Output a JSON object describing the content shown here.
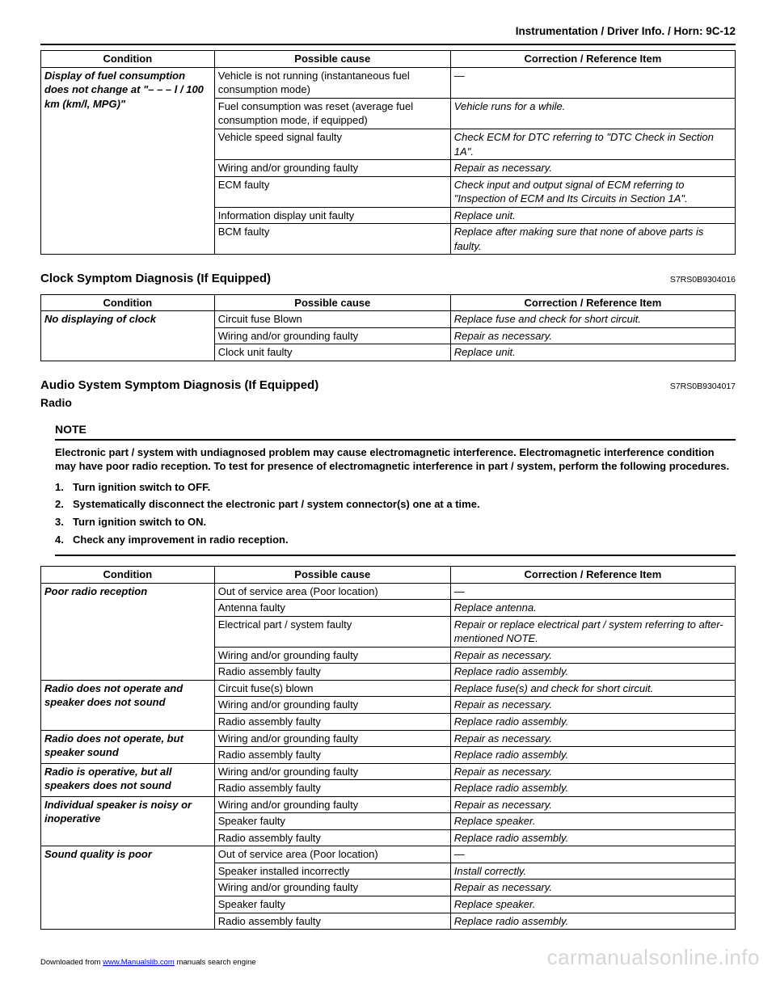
{
  "page": {
    "header": "Instrumentation / Driver Info. / Horn:    9C-12"
  },
  "table1": {
    "headers": {
      "cond": "Condition",
      "cause": "Possible cause",
      "corr": "Correction / Reference Item"
    },
    "cond": "Display of fuel consumption does not change at \"– – – l / 100 km (km/l, MPG)\"",
    "rows": [
      {
        "cause": "Vehicle is not running (instantaneous fuel consumption mode)",
        "corr": "—"
      },
      {
        "cause": "Fuel consumption was reset (average fuel consumption mode, if equipped)",
        "corr": "Vehicle runs for a while."
      },
      {
        "cause": "Vehicle speed signal faulty",
        "corr": "Check ECM for DTC referring to \"DTC Check in Section 1A\"."
      },
      {
        "cause": "Wiring and/or grounding faulty",
        "corr": "Repair as necessary."
      },
      {
        "cause": "ECM faulty",
        "corr": "Check input and output signal of ECM referring to \"Inspection of ECM and Its Circuits in Section 1A\"."
      },
      {
        "cause": "Information display unit faulty",
        "corr": "Replace unit."
      },
      {
        "cause": "BCM faulty",
        "corr": "Replace after making sure that none of above parts is faulty."
      }
    ]
  },
  "section2": {
    "title": "Clock Symptom Diagnosis (If Equipped)",
    "code": "S7RS0B9304016"
  },
  "table2": {
    "headers": {
      "cond": "Condition",
      "cause": "Possible cause",
      "corr": "Correction / Reference Item"
    },
    "cond": "No displaying of clock",
    "rows": [
      {
        "cause": "Circuit fuse Blown",
        "corr": "Replace fuse and check for short circuit."
      },
      {
        "cause": "Wiring and/or grounding faulty",
        "corr": "Repair as necessary."
      },
      {
        "cause": "Clock unit faulty",
        "corr": "Replace unit."
      }
    ]
  },
  "section3": {
    "title": "Audio System Symptom Diagnosis (If Equipped)",
    "code": "S7RS0B9304017",
    "subtitle": "Radio"
  },
  "note": {
    "label": "NOTE",
    "text": "Electronic part / system with undiagnosed problem may cause electromagnetic interference. Electromagnetic interference condition may have poor radio reception. To test for presence of electromagnetic interference in part / system, perform the following procedures.",
    "steps": [
      "Turn ignition switch to OFF.",
      "Systematically disconnect the electronic part / system connector(s) one at a time.",
      "Turn ignition switch to ON.",
      "Check any improvement in radio reception."
    ]
  },
  "table3": {
    "headers": {
      "cond": "Condition",
      "cause": "Possible cause",
      "corr": "Correction / Reference Item"
    },
    "groups": [
      {
        "cond": "Poor radio reception",
        "rows": [
          {
            "cause": "Out of service area (Poor location)",
            "corr": "—"
          },
          {
            "cause": "Antenna faulty",
            "corr": "Replace antenna."
          },
          {
            "cause": "Electrical part / system faulty",
            "corr": "Repair or replace electrical part / system referring to after-mentioned NOTE."
          },
          {
            "cause": "Wiring and/or grounding faulty",
            "corr": "Repair as necessary."
          },
          {
            "cause": "Radio assembly faulty",
            "corr": "Replace radio assembly."
          }
        ]
      },
      {
        "cond": "Radio does not operate and speaker does not sound",
        "rows": [
          {
            "cause": "Circuit fuse(s) blown",
            "corr": "Replace fuse(s) and check for short circuit."
          },
          {
            "cause": "Wiring and/or grounding faulty",
            "corr": "Repair as necessary."
          },
          {
            "cause": "Radio assembly faulty",
            "corr": "Replace radio assembly."
          }
        ]
      },
      {
        "cond": "Radio does not operate, but speaker sound",
        "rows": [
          {
            "cause": "Wiring and/or grounding faulty",
            "corr": "Repair as necessary."
          },
          {
            "cause": "Radio assembly faulty",
            "corr": "Replace radio assembly."
          }
        ]
      },
      {
        "cond": "Radio is operative, but all speakers does not sound",
        "rows": [
          {
            "cause": "Wiring and/or grounding faulty",
            "corr": "Repair as necessary."
          },
          {
            "cause": "Radio assembly faulty",
            "corr": "Replace radio assembly."
          }
        ]
      },
      {
        "cond": "Individual speaker is noisy or inoperative",
        "rows": [
          {
            "cause": "Wiring and/or grounding faulty",
            "corr": "Repair as necessary."
          },
          {
            "cause": "Speaker faulty",
            "corr": "Replace speaker."
          },
          {
            "cause": "Radio assembly faulty",
            "corr": "Replace radio assembly."
          }
        ]
      },
      {
        "cond": "Sound quality is poor",
        "rows": [
          {
            "cause": "Out of service area (Poor location)",
            "corr": "—"
          },
          {
            "cause": "Speaker installed incorrectly",
            "corr": "Install correctly."
          },
          {
            "cause": "Wiring and/or grounding faulty",
            "corr": "Repair as necessary."
          },
          {
            "cause": "Speaker faulty",
            "corr": "Replace speaker."
          },
          {
            "cause": "Radio assembly faulty",
            "corr": "Replace radio assembly."
          }
        ]
      }
    ]
  },
  "footer": {
    "prefix": "Downloaded from ",
    "link": "www.Manualslib.com",
    "suffix": " manuals search engine"
  },
  "watermark": "carmanualsonline.info"
}
